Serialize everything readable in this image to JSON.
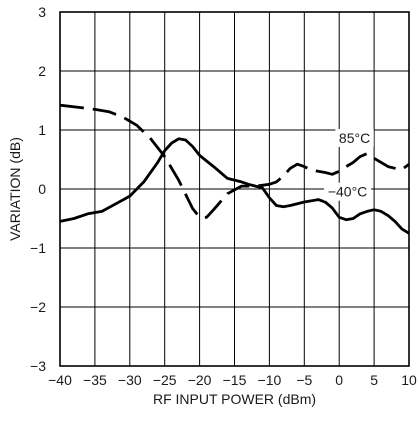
{
  "chart_data": {
    "type": "line",
    "title": "",
    "xlabel": "RF INPUT POWER (dBm)",
    "ylabel": "VARIATION (dB)",
    "xlim": [
      -40,
      10
    ],
    "ylim": [
      -3,
      3
    ],
    "xticks": [
      -40,
      -35,
      -30,
      -25,
      -20,
      -15,
      -10,
      -5,
      0,
      5,
      10
    ],
    "yticks": [
      -3,
      -2,
      -1,
      0,
      1,
      2,
      3
    ],
    "x_tick_labels": [
      "−40",
      "−35",
      "−30",
      "−25",
      "−20",
      "−15",
      "−10",
      "−5",
      "0",
      "5",
      "10"
    ],
    "y_tick_labels": [
      "−3",
      "−2",
      "−1",
      "0",
      "1",
      "2",
      "3"
    ],
    "grid": true,
    "series": [
      {
        "name": "85°C",
        "style": "dashed",
        "color": "#000000",
        "x": [
          -40,
          -37,
          -35,
          -33,
          -31,
          -29,
          -27,
          -25,
          -23,
          -21,
          -20,
          -19,
          -18,
          -16,
          -14,
          -12,
          -10,
          -9,
          -8,
          -7,
          -6,
          -5,
          -4,
          -2,
          -1,
          0,
          1,
          2,
          3,
          4,
          5,
          6,
          7,
          8,
          9,
          10
        ],
        "y": [
          1.42,
          1.38,
          1.35,
          1.31,
          1.22,
          1.08,
          0.85,
          0.55,
          0.15,
          -0.33,
          -0.48,
          -0.48,
          -0.35,
          -0.08,
          0.05,
          0.05,
          0.08,
          0.12,
          0.22,
          0.35,
          0.42,
          0.38,
          0.32,
          0.28,
          0.25,
          0.3,
          0.38,
          0.45,
          0.55,
          0.6,
          0.52,
          0.45,
          0.38,
          0.35,
          0.33,
          0.42
        ]
      },
      {
        "name": "−40°C",
        "style": "solid",
        "color": "#000000",
        "x": [
          -40,
          -38,
          -36,
          -34,
          -32,
          -30,
          -28,
          -26,
          -25,
          -24,
          -23,
          -22,
          -21,
          -20,
          -18,
          -16,
          -14,
          -13,
          -12,
          -11,
          -10,
          -9,
          -8,
          -7,
          -5,
          -3,
          -2,
          -1,
          0,
          1,
          2,
          3,
          4,
          5,
          6,
          7,
          8,
          9,
          10
        ],
        "y": [
          -0.55,
          -0.5,
          -0.42,
          -0.38,
          -0.25,
          -0.12,
          0.12,
          0.45,
          0.65,
          0.78,
          0.85,
          0.83,
          0.72,
          0.57,
          0.38,
          0.18,
          0.12,
          0.08,
          0.05,
          0.02,
          -0.15,
          -0.28,
          -0.3,
          -0.28,
          -0.22,
          -0.18,
          -0.22,
          -0.32,
          -0.48,
          -0.52,
          -0.5,
          -0.42,
          -0.38,
          -0.35,
          -0.38,
          -0.45,
          -0.55,
          -0.68,
          -0.75
        ]
      }
    ],
    "annotations": [
      {
        "text": "85°C",
        "x": 2.2,
        "y": 0.78
      },
      {
        "text": "−40°C",
        "x": 1.2,
        "y": -0.13
      }
    ]
  }
}
